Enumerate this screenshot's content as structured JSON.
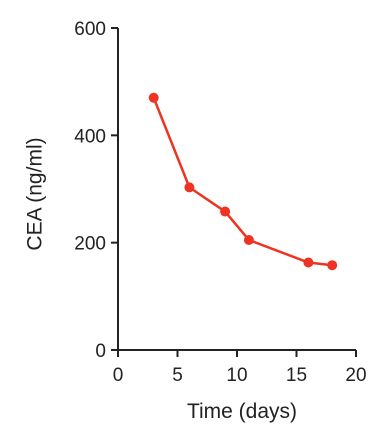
{
  "chart_data": {
    "type": "line",
    "title": "",
    "xlabel": "Time (days)",
    "ylabel": "CEA (ng/ml)",
    "xlim": [
      0,
      20
    ],
    "ylim": [
      0,
      600
    ],
    "x_ticks": [
      0,
      5,
      10,
      15,
      20
    ],
    "y_ticks": [
      0,
      200,
      400,
      600
    ],
    "x_tick_labels": [
      "0",
      "5",
      "10",
      "15",
      "20"
    ],
    "y_tick_labels": [
      "0",
      "200",
      "400",
      "600"
    ],
    "grid": false,
    "legend": "none",
    "series": [
      {
        "color": "#ee3322",
        "x": [
          3,
          6,
          9,
          11,
          16,
          18
        ],
        "y": [
          470,
          303,
          258,
          205,
          163,
          158
        ]
      }
    ]
  }
}
